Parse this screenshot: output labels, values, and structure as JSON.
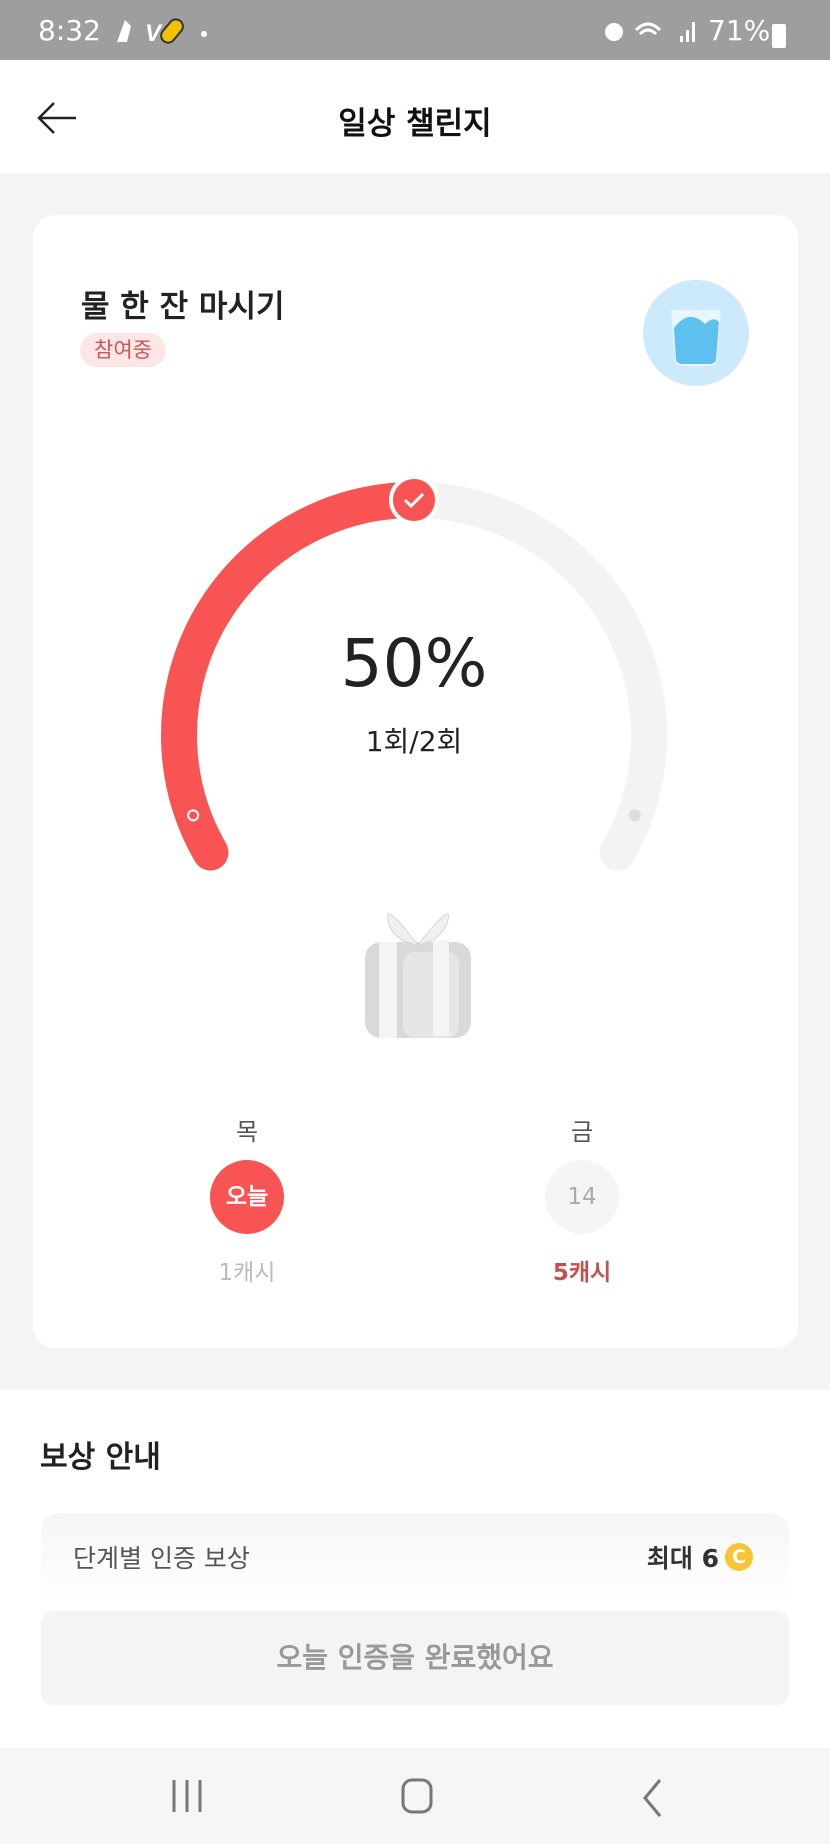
{
  "status_bar": {
    "time": "8:32",
    "battery": "71%",
    "icons": [
      "shoe-icon",
      "v-icon",
      "pill-icon",
      "dot-icon",
      "alarm-icon",
      "wifi-icon",
      "signal-icon",
      "battery-icon"
    ]
  },
  "header": {
    "title": "일상 챌린지",
    "back_icon": "arrow-left-icon"
  },
  "challenge": {
    "title": "물 한 잔 마시기",
    "badge": "참여중",
    "icon": "water-glass-icon",
    "progress_percent": 50,
    "percent_label": "50%",
    "count_label": "1회/2회",
    "accent": "#f75453",
    "days": [
      {
        "weekday": "목",
        "day_label": "오늘",
        "reward": "1캐시",
        "active": true
      },
      {
        "weekday": "금",
        "day_label": "14",
        "reward": "5캐시",
        "active": false
      }
    ]
  },
  "reward_info": {
    "title": "보상 안내",
    "row_label": "단계별 인증 보상",
    "row_value": "최대 6",
    "coin_icon": "coin-icon",
    "button_label": "오늘 인증을 완료했어요"
  },
  "nav": {
    "icons": [
      "recent-apps-icon",
      "home-icon",
      "back-icon"
    ]
  }
}
